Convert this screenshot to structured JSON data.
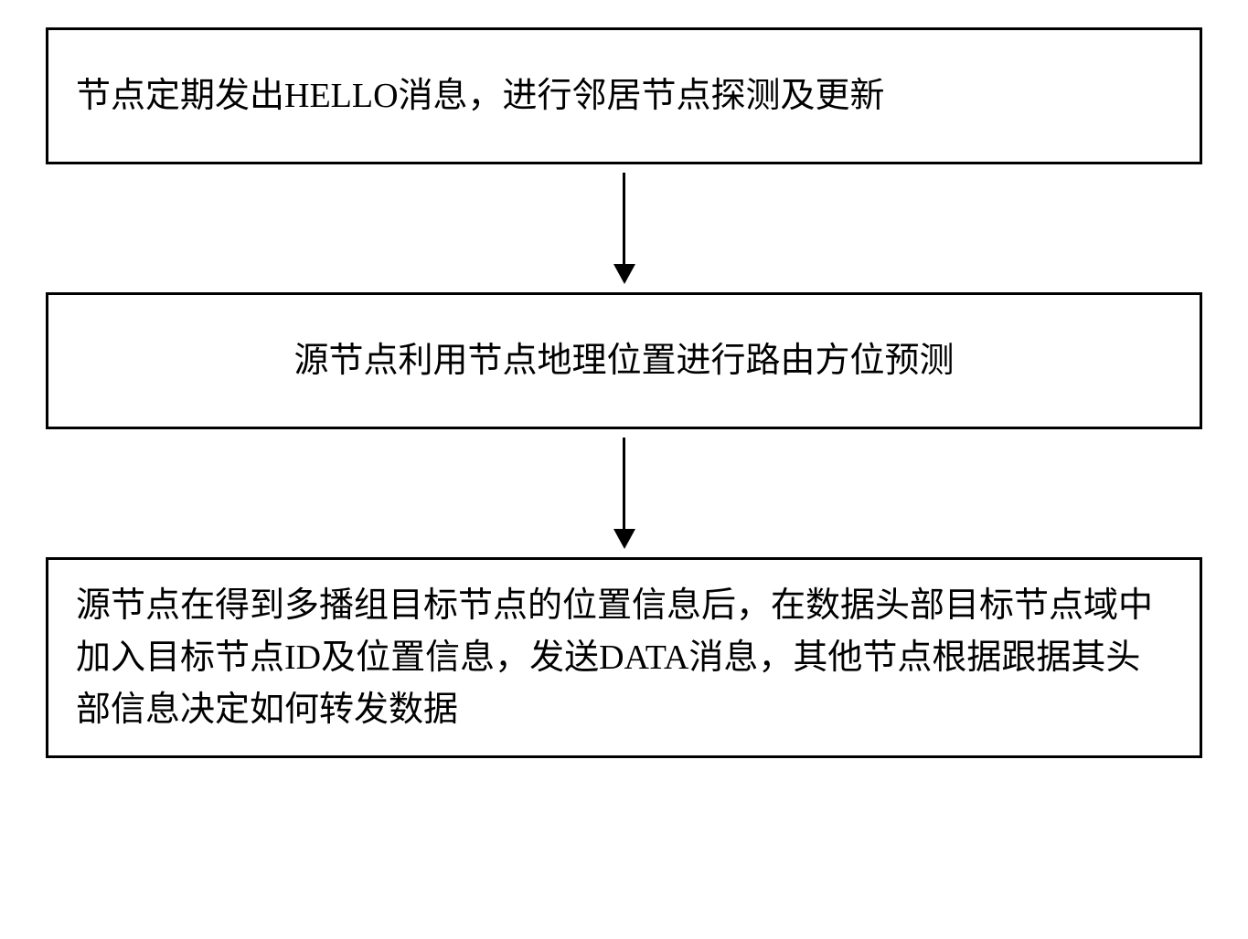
{
  "flowchart": {
    "type": "flowchart",
    "direction": "vertical",
    "background_color": "#ffffff",
    "border_color": "#000000",
    "border_width": 3,
    "text_color": "#000000",
    "font_size": 38,
    "font_family": "SimSun",
    "arrow_color": "#000000",
    "arrow_line_width": 3,
    "arrow_head_width": 24,
    "arrow_head_height": 22,
    "nodes": [
      {
        "id": "step1",
        "text": "节点定期发出HELLO消息，进行邻居节点探测及更新",
        "align": "left",
        "min_height": 150
      },
      {
        "id": "step2",
        "text": "源节点利用节点地理位置进行路由方位预测",
        "align": "center",
        "min_height": 150
      },
      {
        "id": "step3",
        "text": "源节点在得到多播组目标节点的位置信息后，在数据头部目标节点域中加入目标节点ID及位置信息，发送DATA消息，其他节点根据跟据其头部信息决定如何转发数据",
        "align": "left",
        "min_height": 220
      }
    ],
    "edges": [
      {
        "from": "step1",
        "to": "step2",
        "height": 140
      },
      {
        "from": "step2",
        "to": "step3",
        "height": 140
      }
    ]
  }
}
